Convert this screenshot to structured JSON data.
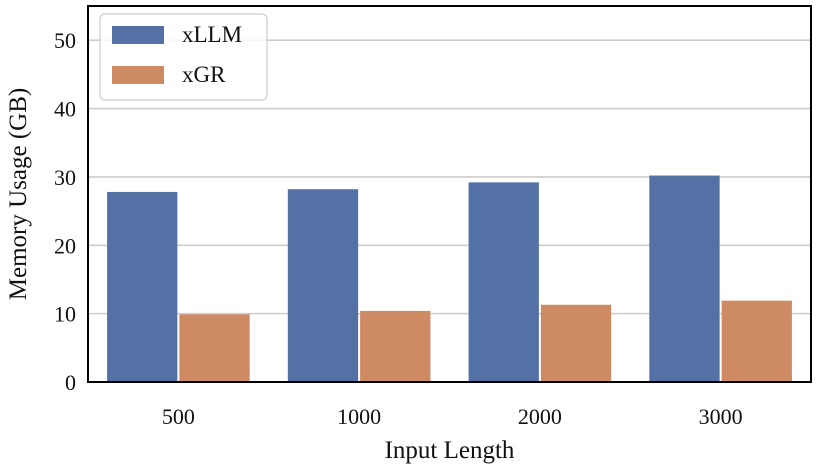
{
  "chart_data": {
    "type": "bar",
    "categories": [
      "500",
      "1000",
      "2000",
      "3000"
    ],
    "series": [
      {
        "name": "xLLM",
        "values": [
          27.8,
          28.2,
          29.2,
          30.2
        ],
        "color": "#5471a6"
      },
      {
        "name": "xGR",
        "values": [
          9.9,
          10.4,
          11.3,
          11.9
        ],
        "color": "#cd8a63"
      }
    ],
    "xlabel": "Input Length",
    "ylabel": "Memory Usage (GB)",
    "ylim": [
      0,
      55
    ],
    "yticks": [
      0,
      10,
      20,
      30,
      40,
      50
    ],
    "grid": "horizontal",
    "legend_position": "top-left"
  }
}
